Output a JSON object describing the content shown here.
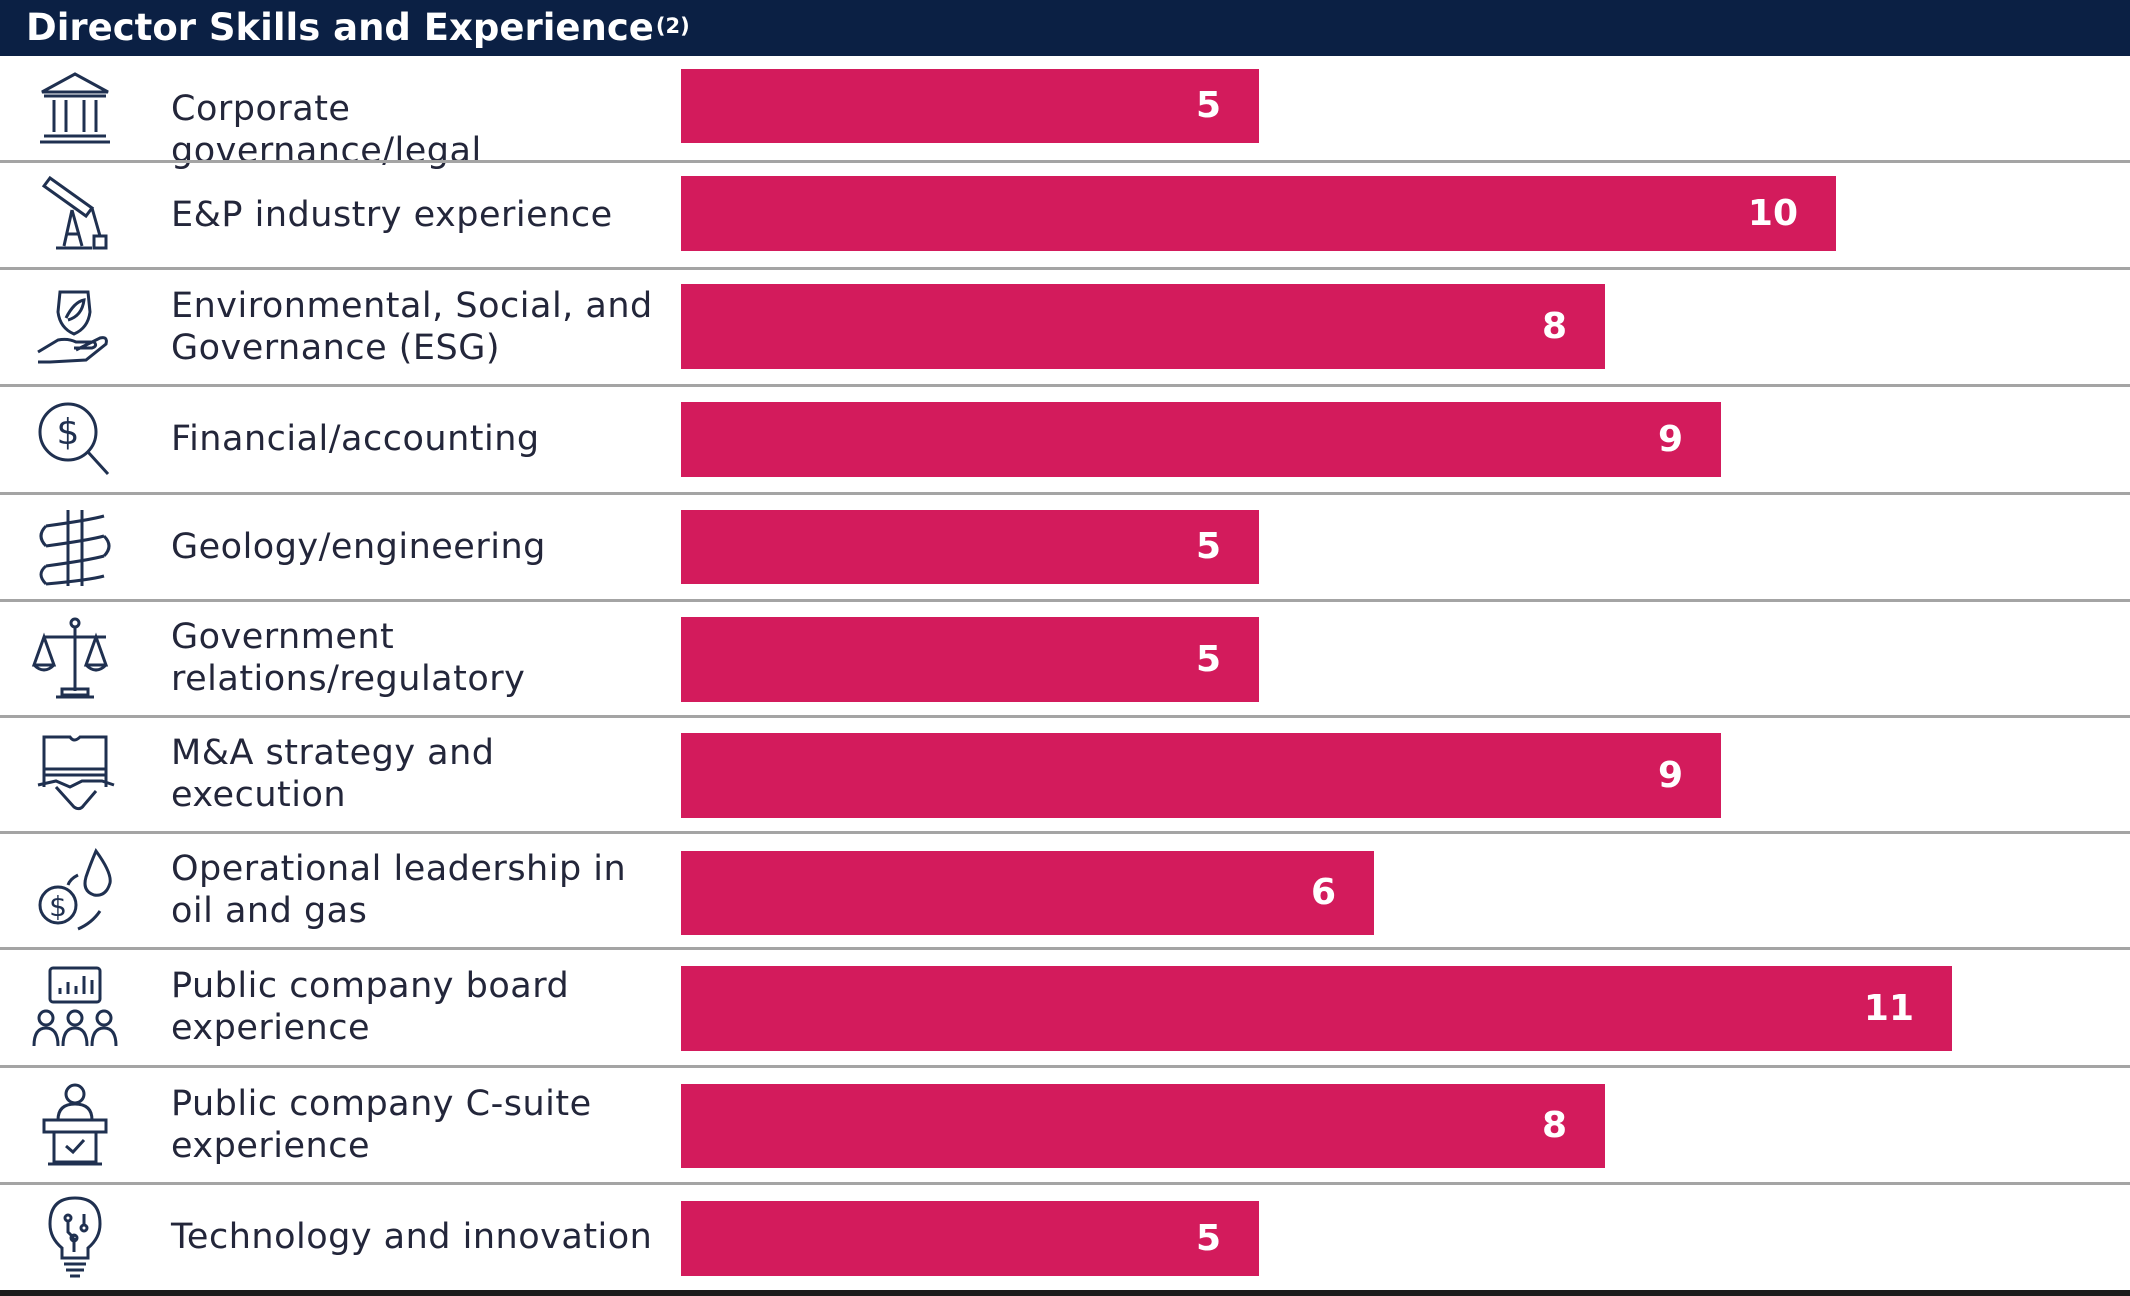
{
  "header": {
    "title": "Director Skills and Experience",
    "footnote": "(2)"
  },
  "colors": {
    "header_bg": "#0b2044",
    "bar": "#d31b5c",
    "separator": "#a4a4a4",
    "text": "#23263a"
  },
  "chart_data": {
    "type": "bar",
    "orientation": "horizontal",
    "title": "Director Skills and Experience",
    "categories": [
      "Corporate governance/legal",
      "E&P industry experience",
      "Environmental, Social, and Governance (ESG)",
      "Financial/accounting",
      "Geology/engineering",
      "Government relations/regulatory",
      "M&A strategy and execution",
      "Operational leadership in oil and gas",
      "Public company board experience",
      "Public company C-suite experience",
      "Technology and innovation"
    ],
    "values": [
      5,
      10,
      8,
      9,
      5,
      5,
      9,
      6,
      11,
      8,
      5
    ],
    "xlim": [
      0,
      17
    ],
    "xlabel": "",
    "ylabel": ""
  },
  "rows": [
    {
      "label_lines": [
        "Corporate governance/legal"
      ],
      "value": "5",
      "icon": "bank-building-icon"
    },
    {
      "label_lines": [
        "E&P industry experience"
      ],
      "value": "10",
      "icon": "oil-pump-icon"
    },
    {
      "label_lines": [
        "Environmental, Social, and",
        "Governance (ESG)"
      ],
      "value": "8",
      "icon": "leaf-hand-icon"
    },
    {
      "label_lines": [
        "Financial/accounting"
      ],
      "value": "9",
      "icon": "dollar-magnifier-icon"
    },
    {
      "label_lines": [
        "Geology/engineering"
      ],
      "value": "5",
      "icon": "drill-icon"
    },
    {
      "label_lines": [
        "Government",
        "relations/regulatory"
      ],
      "value": "5",
      "icon": "scales-icon"
    },
    {
      "label_lines": [
        "M&A strategy and",
        "execution"
      ],
      "value": "9",
      "icon": "handshake-puzzle-icon"
    },
    {
      "label_lines": [
        "Operational leadership in",
        "oil and gas"
      ],
      "value": "6",
      "icon": "coin-drop-icon"
    },
    {
      "label_lines": [
        "Public company board",
        "experience"
      ],
      "value": "11",
      "icon": "board-meeting-icon"
    },
    {
      "label_lines": [
        "Public company C-suite",
        "experience"
      ],
      "value": "8",
      "icon": "executive-podium-icon"
    },
    {
      "label_lines": [
        "Technology and innovation"
      ],
      "value": "5",
      "icon": "lightbulb-circuit-icon"
    }
  ]
}
